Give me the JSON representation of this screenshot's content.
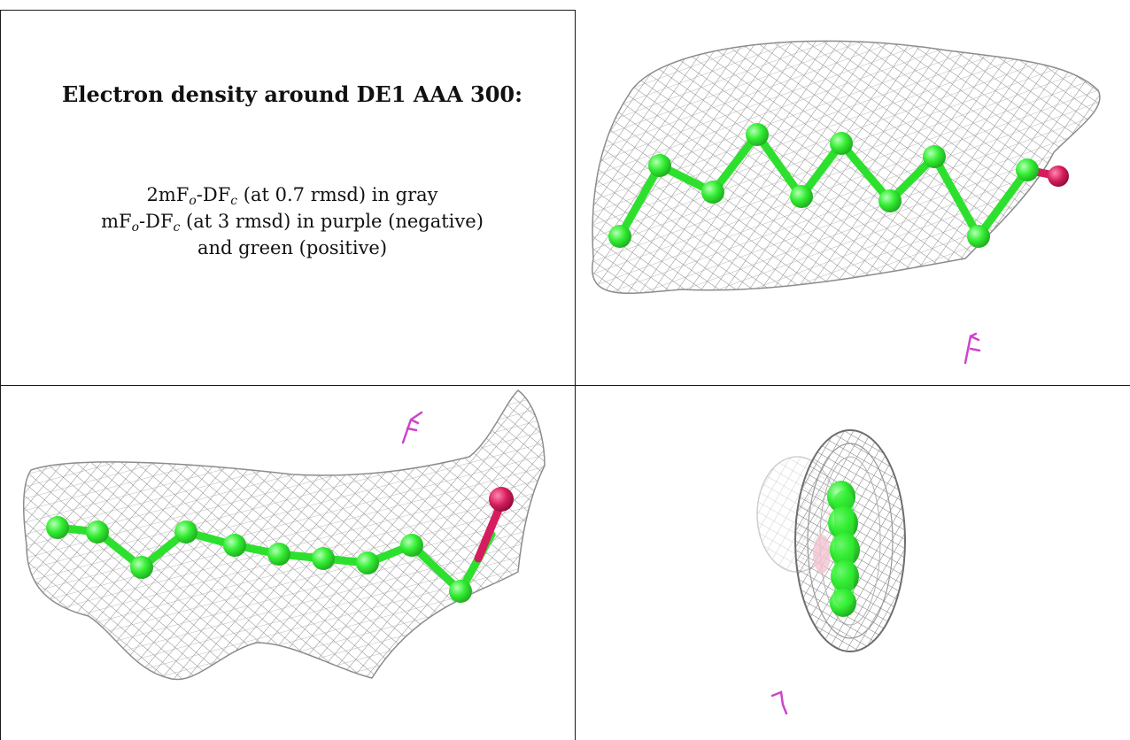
{
  "heading": "Electron density around DE1 AAA 300:",
  "legend": {
    "line1": {
      "pre": "2mF",
      "sub1": "o",
      "mid": "-DF",
      "sub2": "c",
      "post": " (at 0.7 rmsd) in gray"
    },
    "line2": {
      "pre": "mF",
      "sub1": "o",
      "mid": "-DF",
      "sub2": "c",
      "post": " (at 3 rmsd) in purple (negative)"
    },
    "line3": "and green (positive)"
  },
  "colors": {
    "mesh": "#8c8c8c",
    "carbon": "#33ee33",
    "oxygen": "#d61c5e",
    "difference_negative": "#cc44cc"
  },
  "panels": [
    {
      "view": "density-view-1"
    },
    {
      "view": "density-view-2"
    },
    {
      "view": "density-view-3"
    }
  ]
}
